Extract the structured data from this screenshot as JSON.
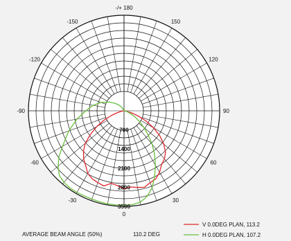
{
  "chart_data": {
    "type": "polar-line",
    "angle_labels": [
      {
        "deg": 180,
        "text": "-/+ 180"
      },
      {
        "deg": 150,
        "text": "150"
      },
      {
        "deg": -150,
        "text": "-150"
      },
      {
        "deg": 120,
        "text": "120"
      },
      {
        "deg": -120,
        "text": "-120"
      },
      {
        "deg": 90,
        "text": "90"
      },
      {
        "deg": -90,
        "text": "-90"
      },
      {
        "deg": 60,
        "text": "60"
      },
      {
        "deg": -60,
        "text": "-60"
      },
      {
        "deg": 30,
        "text": "30"
      },
      {
        "deg": -30,
        "text": "-30"
      },
      {
        "deg": 0,
        "text": "0"
      }
    ],
    "radial_ticks": [
      700,
      1400,
      2100,
      2800,
      3500
    ],
    "radial_max": 3500,
    "spoke_step_deg": 10,
    "series": [
      {
        "name": "V 0.0DEG PLAN, 113.2",
        "color": "#e0282d",
        "points": [
          [
            -90,
            0
          ],
          [
            -80,
            80
          ],
          [
            -75,
            250
          ],
          [
            -70,
            480
          ],
          [
            -65,
            800
          ],
          [
            -60,
            1150
          ],
          [
            -55,
            1500
          ],
          [
            -50,
            1850
          ],
          [
            -45,
            2100
          ],
          [
            -40,
            2300
          ],
          [
            -35,
            2450
          ],
          [
            -30,
            2650
          ],
          [
            -25,
            2750
          ],
          [
            -20,
            2800
          ],
          [
            -15,
            2850
          ],
          [
            -10,
            2700
          ],
          [
            -5,
            2750
          ],
          [
            0,
            2850
          ],
          [
            5,
            2800
          ],
          [
            10,
            2850
          ],
          [
            15,
            2900
          ],
          [
            20,
            2800
          ],
          [
            25,
            2750
          ],
          [
            30,
            2600
          ],
          [
            35,
            2400
          ],
          [
            40,
            2300
          ],
          [
            45,
            2150
          ],
          [
            50,
            1900
          ],
          [
            55,
            1600
          ],
          [
            60,
            1250
          ],
          [
            65,
            900
          ],
          [
            70,
            560
          ],
          [
            75,
            280
          ],
          [
            80,
            100
          ],
          [
            90,
            0
          ]
        ]
      },
      {
        "name": "H 0.0DEG PLAN, 107.2",
        "color": "#6abf3c",
        "points": [
          [
            -165,
            0
          ],
          [
            -150,
            120
          ],
          [
            -140,
            260
          ],
          [
            -130,
            430
          ],
          [
            -120,
            640
          ],
          [
            -110,
            900
          ],
          [
            -100,
            1150
          ],
          [
            -90,
            1400
          ],
          [
            -80,
            1750
          ],
          [
            -70,
            2150
          ],
          [
            -60,
            2600
          ],
          [
            -55,
            2900
          ],
          [
            -50,
            3150
          ],
          [
            -45,
            3350
          ],
          [
            -40,
            3420
          ],
          [
            -35,
            3450
          ],
          [
            -30,
            3450
          ],
          [
            -25,
            3440
          ],
          [
            -20,
            3440
          ],
          [
            -15,
            3450
          ],
          [
            -10,
            3460
          ],
          [
            -5,
            3460
          ],
          [
            0,
            3460
          ],
          [
            5,
            3450
          ],
          [
            10,
            3400
          ],
          [
            15,
            3250
          ],
          [
            20,
            3000
          ],
          [
            25,
            2650
          ],
          [
            30,
            2300
          ],
          [
            35,
            1950
          ],
          [
            40,
            1600
          ],
          [
            45,
            1250
          ],
          [
            50,
            950
          ],
          [
            55,
            700
          ],
          [
            60,
            480
          ],
          [
            65,
            310
          ],
          [
            70,
            180
          ],
          [
            75,
            90
          ],
          [
            80,
            30
          ],
          [
            90,
            0
          ]
        ]
      }
    ]
  },
  "footer": {
    "beam_angle_label": "AVERAGE BEAM ANGLE (50%)",
    "beam_angle_value": "110.2 DEG"
  },
  "legend": [
    {
      "label": "V 0.0DEG PLAN, 113.2",
      "color": "#e0282d"
    },
    {
      "label": "H 0.0DEG PLAN, 107.2",
      "color": "#6abf3c"
    }
  ]
}
